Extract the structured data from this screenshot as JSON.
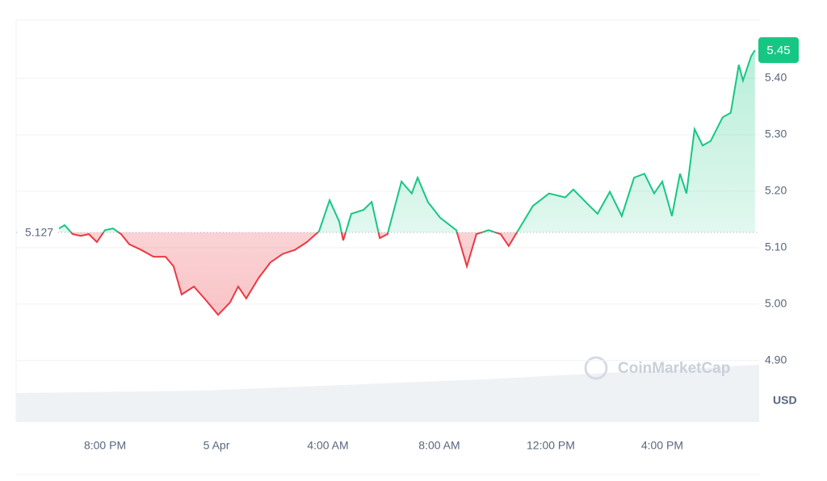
{
  "chart_data": {
    "type": "line",
    "x": [
      18.35,
      18.55,
      18.84,
      19.13,
      19.42,
      19.71,
      20,
      20.29,
      20.58,
      20.87,
      21.3,
      21.74,
      22.17,
      22.46,
      22.75,
      23.19,
      23.62,
      24.06,
      24.49,
      24.78,
      25.07,
      25.51,
      25.94,
      26.38,
      26.81,
      27.25,
      27.68,
      28.06,
      28.41,
      28.55,
      28.84,
      29.28,
      29.57,
      29.86,
      30.14,
      30.64,
      31.01,
      31.22,
      31.59,
      32.03,
      32.61,
      32.99,
      33.33,
      33.77,
      34.2,
      34.49,
      34.93,
      35.36,
      35.94,
      36.52,
      36.81,
      37.39,
      37.68,
      38.12,
      38.55,
      38.99,
      39.36,
      39.71,
      40,
      40.35,
      40.64,
      40.87,
      41.16,
      41.45,
      41.74,
      42.17,
      42.46,
      42.75,
      42.9,
      43.19,
      43.33
    ],
    "values": [
      5.134,
      5.14,
      5.124,
      5.121,
      5.124,
      5.11,
      5.131,
      5.134,
      5.124,
      5.106,
      5.096,
      5.084,
      5.084,
      5.067,
      5.017,
      5.031,
      5.007,
      4.981,
      5.003,
      5.031,
      5.01,
      5.046,
      5.074,
      5.089,
      5.096,
      5.11,
      5.129,
      5.184,
      5.146,
      5.113,
      5.16,
      5.167,
      5.181,
      5.117,
      5.124,
      5.217,
      5.196,
      5.224,
      5.181,
      5.153,
      5.131,
      5.067,
      5.124,
      5.131,
      5.124,
      5.103,
      5.139,
      5.174,
      5.196,
      5.189,
      5.203,
      5.174,
      5.16,
      5.199,
      5.156,
      5.224,
      5.231,
      5.196,
      5.217,
      5.156,
      5.231,
      5.196,
      5.31,
      5.281,
      5.289,
      5.331,
      5.339,
      5.424,
      5.396,
      5.439,
      5.45
    ],
    "baseline": 5.127,
    "up_color": "#16c784",
    "down_color": "#ea3943",
    "xlim": [
      16.81,
      43.48
    ],
    "xticks": [
      {
        "value": 20,
        "label": "8:00 PM"
      },
      {
        "value": 24,
        "label": "5 Apr"
      },
      {
        "value": 28,
        "label": "4:00 AM"
      },
      {
        "value": 32,
        "label": "8:00 AM"
      },
      {
        "value": 36,
        "label": "12:00 PM"
      },
      {
        "value": 40,
        "label": "4:00 PM"
      }
    ],
    "ylim": [
      4.791,
      5.503
    ],
    "yticks": [
      {
        "value": 4.9,
        "label": "4.90"
      },
      {
        "value": 5.0,
        "label": "5.00"
      },
      {
        "value": 5.1,
        "label": "5.10"
      },
      {
        "value": 5.2,
        "label": "5.20"
      },
      {
        "value": 5.3,
        "label": "5.30"
      },
      {
        "value": 5.4,
        "label": "5.40"
      }
    ],
    "grid": true,
    "currency": "USD",
    "watermark": "CoinMarketCap"
  }
}
